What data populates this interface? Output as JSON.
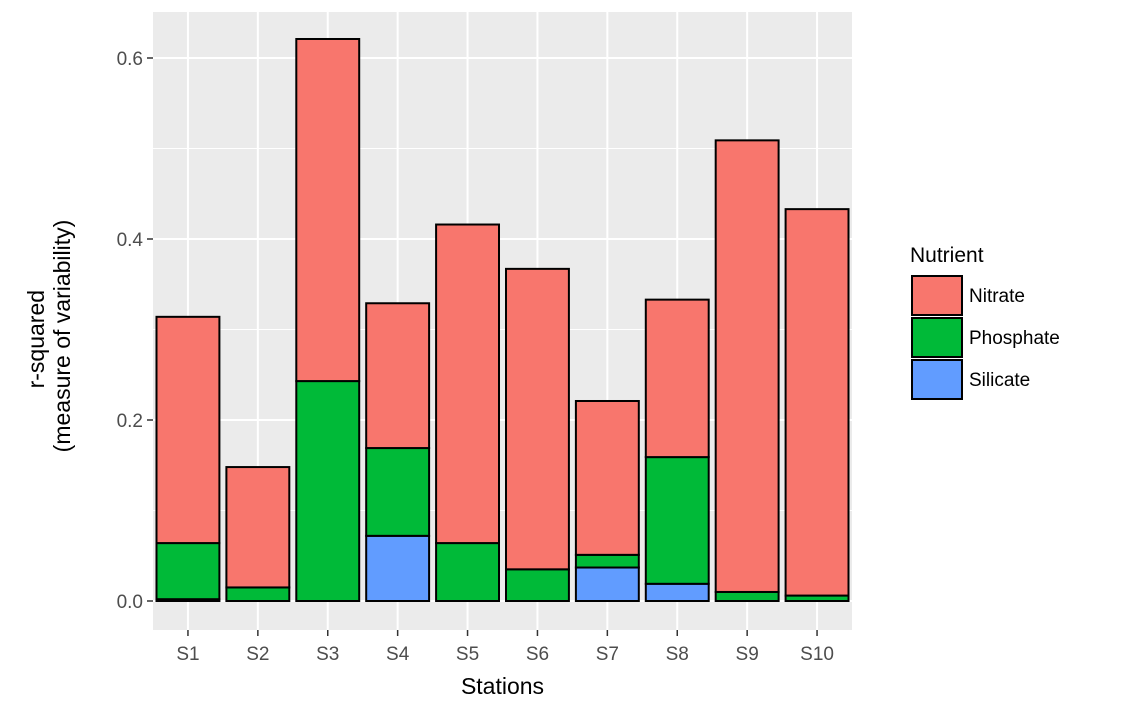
{
  "chart_data": {
    "type": "bar",
    "stacked": true,
    "xlabel": "Stations",
    "ylabel_lines": [
      "r-squared",
      "(measure of variability)"
    ],
    "categories": [
      "S1",
      "S2",
      "S3",
      "S4",
      "S5",
      "S6",
      "S7",
      "S8",
      "S9",
      "S10"
    ],
    "series": [
      {
        "name": "Silicate",
        "color": "#619CFF",
        "values": [
          0.002,
          0.0,
          0.0,
          0.072,
          0.0,
          0.0,
          0.037,
          0.019,
          0.0,
          0.0
        ]
      },
      {
        "name": "Phosphate",
        "color": "#00BA38",
        "values": [
          0.062,
          0.015,
          0.243,
          0.097,
          0.064,
          0.035,
          0.014,
          0.14,
          0.01,
          0.006
        ]
      },
      {
        "name": "Nitrate",
        "color": "#F8766D",
        "values": [
          0.25,
          0.133,
          0.378,
          0.16,
          0.352,
          0.332,
          0.17,
          0.174,
          0.499,
          0.427
        ]
      }
    ],
    "ylim": [
      -0.03,
      0.65
    ],
    "yticks": [
      0.0,
      0.2,
      0.4,
      0.6
    ],
    "ytick_labels": [
      "0.0",
      "0.2",
      "0.4",
      "0.6"
    ],
    "grid": true,
    "background": "#EBEBEB",
    "legend": {
      "title": "Nutrient",
      "position": "right",
      "entries": [
        "Nitrate",
        "Phosphate",
        "Silicate"
      ]
    }
  }
}
